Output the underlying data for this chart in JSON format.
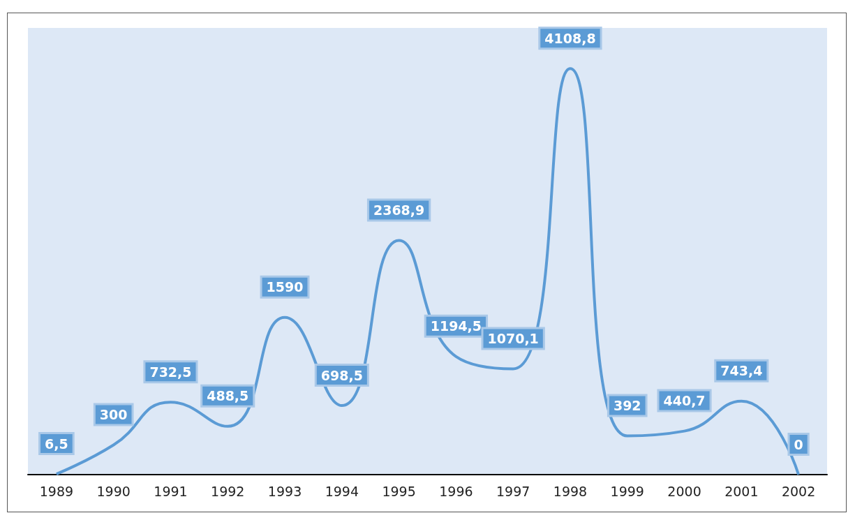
{
  "chart_data": {
    "type": "line",
    "categories": [
      "1989",
      "1990",
      "1991",
      "1992",
      "1993",
      "1994",
      "1995",
      "1996",
      "1997",
      "1998",
      "1999",
      "2000",
      "2001",
      "2002"
    ],
    "series": [
      {
        "color": "#5b9bd5",
        "values": [
          6.5,
          300,
          732.5,
          488.5,
          1590,
          698.5,
          2368.9,
          1194.5,
          1070.1,
          4108.8,
          392,
          440.7,
          743.4,
          0
        ],
        "value_labels": [
          "6,5",
          "300",
          "732,5",
          "488,5",
          "1590",
          "698,5",
          "2368,9",
          "1194,5",
          "1070,1",
          "4108,8",
          "392",
          "440,7",
          "743,4",
          "0"
        ]
      }
    ],
    "grid": false,
    "marker": "none",
    "line_style": "solid",
    "tick_labels": "x"
  }
}
